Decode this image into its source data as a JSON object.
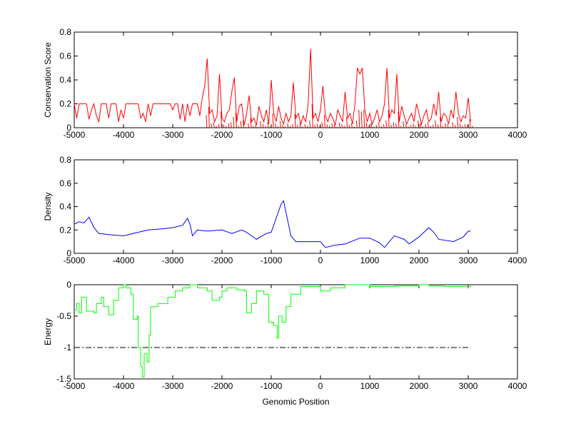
{
  "chart_data": [
    {
      "type": "line",
      "ylabel": "Conservation Score",
      "xlabel": "",
      "xlim": [
        -5000,
        4000
      ],
      "ylim": [
        0,
        0.8
      ],
      "xticks": [
        -5000,
        -4000,
        -3000,
        -2000,
        -1000,
        0,
        1000,
        2000,
        3000,
        4000
      ],
      "yticks": [
        0,
        0.2,
        0.4,
        0.6,
        0.8
      ],
      "ytick_labels": [
        "0",
        "0.2",
        "0.4",
        "0.6",
        "0.8"
      ],
      "color": "#ff0000",
      "x_start": -5000,
      "x_step": 50,
      "values": [
        0.2,
        0.08,
        0.2,
        0.2,
        0.2,
        0.2,
        0.07,
        0.15,
        0.2,
        0.1,
        0.05,
        0.2,
        0.2,
        0.2,
        0.08,
        0.2,
        0.2,
        0.2,
        0.05,
        0.15,
        0.08,
        0.2,
        0.2,
        0.2,
        0.2,
        0.2,
        0.2,
        0.08,
        0.12,
        0.05,
        0.2,
        0.1,
        0.2,
        0.2,
        0.2,
        0.2,
        0.2,
        0.2,
        0.2,
        0.2,
        0.15,
        0.2,
        0.2,
        0.07,
        0.2,
        0.05,
        0.2,
        0.1,
        0.2,
        0.2,
        0.2,
        0.1,
        0.25,
        0.35,
        0.58,
        0.12,
        0.15,
        0.05,
        0.1,
        0.45,
        0.08,
        0.05,
        0.12,
        0.15,
        0.3,
        0.42,
        0.05,
        0.18,
        0.2,
        0.02,
        0.12,
        0.27,
        0.05,
        0.08,
        0.02,
        0.18,
        0.1,
        0.05,
        0.15,
        0.03,
        0.4,
        0.12,
        0.05,
        0.18,
        0.08,
        0.03,
        0.12,
        0.05,
        0.1,
        0.38,
        0.08,
        0.12,
        0.03,
        0.1,
        0.05,
        0.2,
        0.66,
        0.08,
        0.12,
        0.05,
        0.15,
        0.35,
        0.1,
        0.05,
        0.12,
        0.08,
        0.02,
        0.15,
        0.1,
        0.05,
        0.3,
        0.08,
        0.12,
        0.03,
        0.2,
        0.5,
        0.45,
        0.5,
        0.15,
        0.05,
        0.12,
        0.03,
        0.08,
        0.15,
        0.05,
        0.1,
        0.2,
        0.5,
        0.08,
        0.15,
        0.12,
        0.45,
        0.05,
        0.18,
        0.1,
        0.03,
        0.08,
        0.12,
        0.05,
        0.2,
        0.12,
        0.03,
        0.1,
        0.15,
        0.05,
        0.08,
        0.2,
        0.1,
        0.3,
        0.05,
        0.12,
        0.1,
        0.03,
        0.15,
        0.08,
        0.3,
        0.12,
        0.05,
        0.1,
        0.08,
        0.25,
        0.05
      ]
    },
    {
      "type": "line",
      "ylabel": "Density",
      "xlabel": "",
      "xlim": [
        -5000,
        4000
      ],
      "ylim": [
        0,
        0.8
      ],
      "xticks": [
        -5000,
        -4000,
        -3000,
        -2000,
        -1000,
        0,
        1000,
        2000,
        3000,
        4000
      ],
      "yticks": [
        0,
        0.2,
        0.4,
        0.6,
        0.8
      ],
      "ytick_labels": [
        "0",
        "0.2",
        "0.4",
        "0.6",
        "0.8"
      ],
      "color": "#0000ff",
      "points": [
        [
          -5000,
          0.25
        ],
        [
          -4900,
          0.27
        ],
        [
          -4800,
          0.26
        ],
        [
          -4700,
          0.31
        ],
        [
          -4600,
          0.22
        ],
        [
          -4500,
          0.17
        ],
        [
          -4300,
          0.16
        ],
        [
          -4000,
          0.15
        ],
        [
          -3800,
          0.17
        ],
        [
          -3500,
          0.2
        ],
        [
          -3200,
          0.21
        ],
        [
          -3000,
          0.22
        ],
        [
          -2800,
          0.24
        ],
        [
          -2700,
          0.3
        ],
        [
          -2650,
          0.25
        ],
        [
          -2600,
          0.15
        ],
        [
          -2500,
          0.2
        ],
        [
          -2300,
          0.19
        ],
        [
          -2000,
          0.2
        ],
        [
          -1800,
          0.17
        ],
        [
          -1600,
          0.2
        ],
        [
          -1500,
          0.18
        ],
        [
          -1300,
          0.12
        ],
        [
          -1100,
          0.17
        ],
        [
          -1000,
          0.18
        ],
        [
          -900,
          0.3
        ],
        [
          -800,
          0.42
        ],
        [
          -750,
          0.45
        ],
        [
          -700,
          0.35
        ],
        [
          -600,
          0.15
        ],
        [
          -500,
          0.1
        ],
        [
          -300,
          0.1
        ],
        [
          0,
          0.1
        ],
        [
          100,
          0.05
        ],
        [
          300,
          0.07
        ],
        [
          500,
          0.08
        ],
        [
          800,
          0.13
        ],
        [
          1000,
          0.13
        ],
        [
          1200,
          0.09
        ],
        [
          1300,
          0.05
        ],
        [
          1500,
          0.15
        ],
        [
          1700,
          0.12
        ],
        [
          1800,
          0.08
        ],
        [
          2000,
          0.14
        ],
        [
          2200,
          0.22
        ],
        [
          2300,
          0.18
        ],
        [
          2400,
          0.12
        ],
        [
          2700,
          0.1
        ],
        [
          2900,
          0.14
        ],
        [
          3000,
          0.19
        ],
        [
          3050,
          0.19
        ]
      ]
    },
    {
      "type": "line",
      "ylabel": "Energy",
      "xlabel": "Genomic Position",
      "xlim": [
        -5000,
        4000
      ],
      "ylim": [
        -1.5,
        0
      ],
      "xticks": [
        -5000,
        -4000,
        -3000,
        -2000,
        -1000,
        0,
        1000,
        2000,
        3000,
        4000
      ],
      "yticks": [
        -1.5,
        -1,
        -0.5,
        0
      ],
      "ytick_labels": [
        "-1.5",
        "-1",
        "-0.5",
        "0"
      ],
      "color": "#00ff00",
      "threshold": {
        "y": -1,
        "x_range": [
          -5000,
          3050
        ],
        "color": "#000000",
        "style": "dash-dot"
      },
      "points": [
        [
          -5000,
          -0.4
        ],
        [
          -4950,
          -0.3
        ],
        [
          -4900,
          -0.45
        ],
        [
          -4850,
          -0.2
        ],
        [
          -4750,
          -0.42
        ],
        [
          -4600,
          -0.45
        ],
        [
          -4550,
          -0.3
        ],
        [
          -4450,
          -0.2
        ],
        [
          -4400,
          -0.35
        ],
        [
          -4300,
          -0.48
        ],
        [
          -4200,
          -0.25
        ],
        [
          -4100,
          -0.05
        ],
        [
          -4000,
          0
        ],
        [
          -3950,
          -0.05
        ],
        [
          -3850,
          -0.15
        ],
        [
          -3800,
          -0.55
        ],
        [
          -3720,
          -0.5
        ],
        [
          -3700,
          -1.0
        ],
        [
          -3650,
          -1.3
        ],
        [
          -3620,
          -1.47
        ],
        [
          -3580,
          -1.1
        ],
        [
          -3520,
          -1.23
        ],
        [
          -3480,
          -0.8
        ],
        [
          -3450,
          -0.35
        ],
        [
          -3300,
          -0.3
        ],
        [
          -3100,
          -0.2
        ],
        [
          -2950,
          -0.1
        ],
        [
          -2800,
          -0.05
        ],
        [
          -2650,
          0
        ],
        [
          -2500,
          -0.05
        ],
        [
          -2300,
          -0.1
        ],
        [
          -2200,
          -0.25
        ],
        [
          -2050,
          -0.2
        ],
        [
          -2000,
          -0.1
        ],
        [
          -1900,
          -0.05
        ],
        [
          -1700,
          -0.08
        ],
        [
          -1550,
          -0.1
        ],
        [
          -1500,
          -0.45
        ],
        [
          -1400,
          -0.3
        ],
        [
          -1300,
          -0.1
        ],
        [
          -1150,
          -0.15
        ],
        [
          -1050,
          -0.6
        ],
        [
          -950,
          -0.65
        ],
        [
          -880,
          -0.85
        ],
        [
          -850,
          -0.5
        ],
        [
          -780,
          -0.6
        ],
        [
          -700,
          -0.35
        ],
        [
          -600,
          -0.15
        ],
        [
          -400,
          -0.03
        ],
        [
          0,
          -0.1
        ],
        [
          200,
          -0.05
        ],
        [
          500,
          0
        ],
        [
          1000,
          -0.03
        ],
        [
          1500,
          -0.02
        ],
        [
          2000,
          0
        ],
        [
          2200,
          -0.02
        ],
        [
          2500,
          -0.03
        ],
        [
          3050,
          -0.02
        ]
      ]
    }
  ]
}
